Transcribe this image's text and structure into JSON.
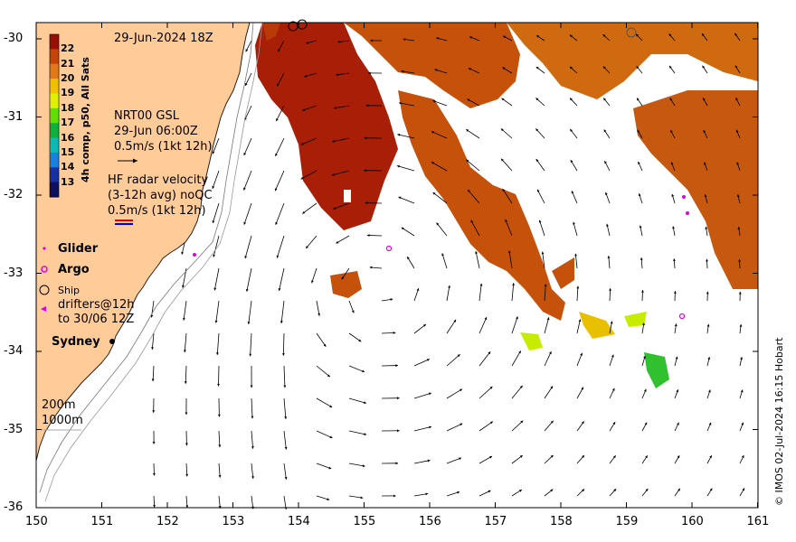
{
  "map": {
    "date_title": "29-Jun-2024 18Z",
    "colorbar": {
      "title": "4h comp, p50, All Sats",
      "ticks": [
        "22",
        "21",
        "20",
        "19",
        "18",
        "17",
        "16",
        "15",
        "14",
        "13"
      ],
      "colors": [
        "#9a0f05",
        "#c64408",
        "#e27818",
        "#f0c000",
        "#dff000",
        "#5fe000",
        "#10b040",
        "#0fb8b8",
        "#1a80e0",
        "#1530a0",
        "#0d1060"
      ]
    },
    "current_legend": {
      "title": "NRT00 GSL",
      "time": "29-Jun 06:00Z",
      "scale": "0.5m/s (1kt 12h)"
    },
    "radar_legend": {
      "line1": "HF radar velocity",
      "line2": "(3-12h avg) noQC",
      "scale": "0.5m/s (1kt 12h)"
    },
    "markers": {
      "glider": "Glider",
      "argo": "Argo",
      "ship": "Ship",
      "drifters": "drifters@12h",
      "drifters_to": "to 30/06 12Z"
    },
    "place": "Sydney",
    "isobaths": {
      "shallow": "200m",
      "deep": "1000m"
    },
    "lat_ticks": [
      "-30",
      "-31",
      "-32",
      "-33",
      "-34",
      "-35",
      "-36"
    ],
    "lon_ticks": [
      "150",
      "151",
      "152",
      "153",
      "154",
      "155",
      "156",
      "157",
      "158",
      "159",
      "160",
      "161"
    ],
    "copyright": "© IMOS 02-Jul-2024 16:15 Hobart",
    "colors": {
      "land": "#ffcc99",
      "sea": "#ffffff",
      "argo": "#e000e0",
      "glider": "#e000e0"
    }
  }
}
